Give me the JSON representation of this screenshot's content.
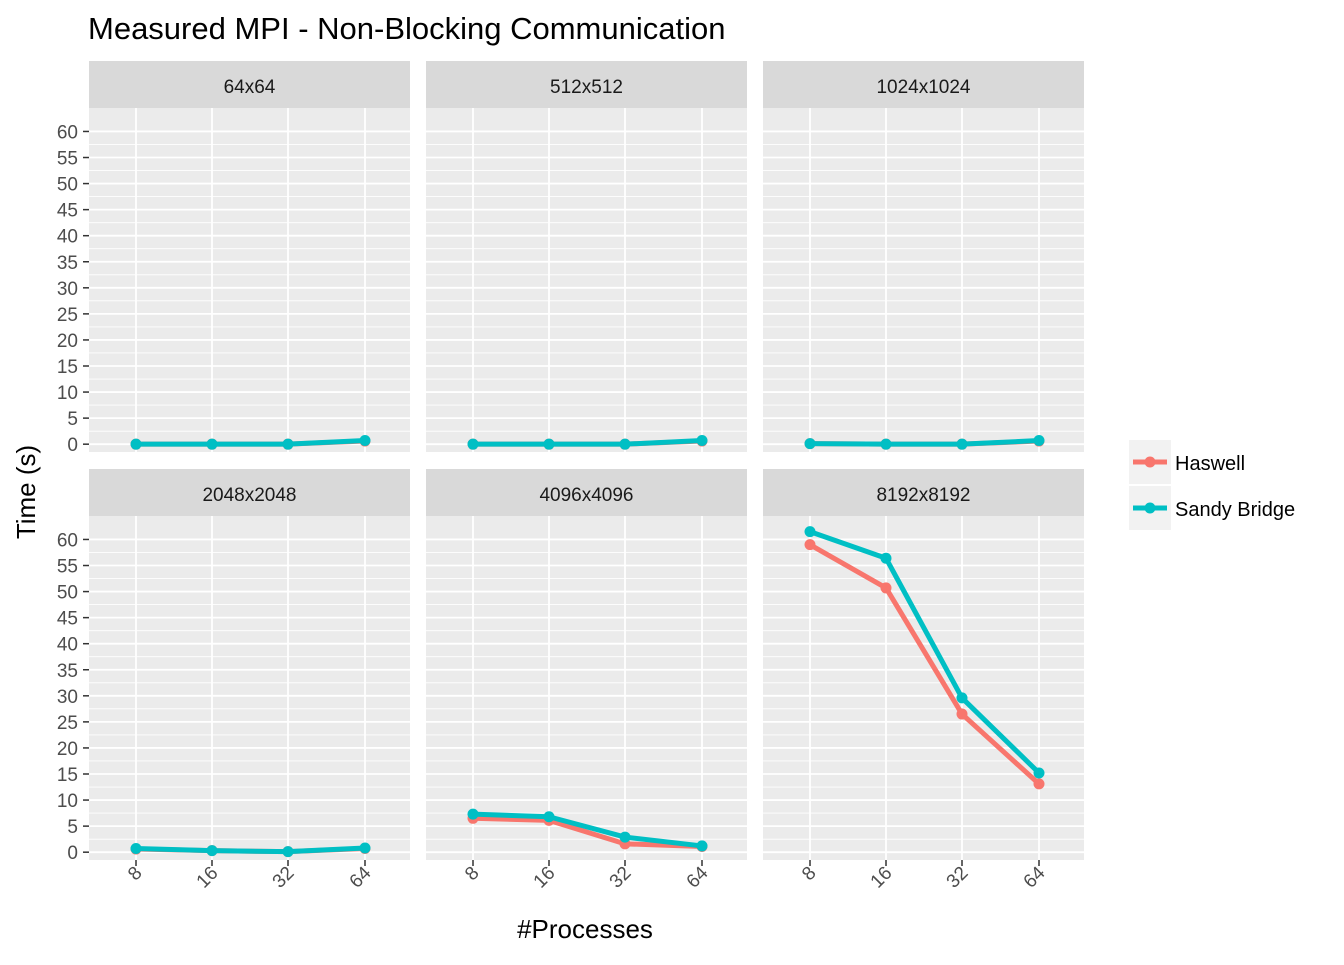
{
  "title": "Measured MPI - Non-Blocking Communication",
  "chart_data": {
    "type": "line",
    "title": "Measured MPI - Non-Blocking Communication",
    "xlabel": "#Processes",
    "ylabel": "Time (s)",
    "categories": [
      "8",
      "16",
      "32",
      "64"
    ],
    "y_ticks": [
      0,
      5,
      10,
      15,
      20,
      25,
      30,
      35,
      40,
      45,
      50,
      55,
      60
    ],
    "ylim": [
      -1.5,
      64.5
    ],
    "grid": true,
    "legend_position": "right",
    "facet_layout": "2 rows x 3 columns, shared axes",
    "legend": [
      {
        "name": "Haswell",
        "color": "#F8766D"
      },
      {
        "name": "Sandy Bridge",
        "color": "#00BFC4"
      }
    ],
    "panels": [
      {
        "label": "64x64",
        "series": [
          {
            "name": "Haswell",
            "values": [
              0.0,
              0.0,
              0.0,
              0.6
            ]
          },
          {
            "name": "Sandy Bridge",
            "values": [
              0.0,
              0.0,
              0.0,
              0.7
            ]
          }
        ]
      },
      {
        "label": "512x512",
        "series": [
          {
            "name": "Haswell",
            "values": [
              0.0,
              0.0,
              0.0,
              0.6
            ]
          },
          {
            "name": "Sandy Bridge",
            "values": [
              0.0,
              0.0,
              0.0,
              0.7
            ]
          }
        ]
      },
      {
        "label": "1024x1024",
        "series": [
          {
            "name": "Haswell",
            "values": [
              0.1,
              0.0,
              0.0,
              0.6
            ]
          },
          {
            "name": "Sandy Bridge",
            "values": [
              0.1,
              0.0,
              0.0,
              0.7
            ]
          }
        ]
      },
      {
        "label": "2048x2048",
        "series": [
          {
            "name": "Haswell",
            "values": [
              0.6,
              0.3,
              0.1,
              0.7
            ]
          },
          {
            "name": "Sandy Bridge",
            "values": [
              0.7,
              0.3,
              0.1,
              0.8
            ]
          }
        ]
      },
      {
        "label": "4096x4096",
        "series": [
          {
            "name": "Haswell",
            "values": [
              6.5,
              6.1,
              1.6,
              1.1
            ]
          },
          {
            "name": "Sandy Bridge",
            "values": [
              7.3,
              6.8,
              2.9,
              1.2
            ]
          }
        ]
      },
      {
        "label": "8192x8192",
        "series": [
          {
            "name": "Haswell",
            "values": [
              59.0,
              50.7,
              26.5,
              13.1
            ]
          },
          {
            "name": "Sandy Bridge",
            "values": [
              61.5,
              56.4,
              29.6,
              15.2
            ]
          }
        ]
      }
    ]
  }
}
